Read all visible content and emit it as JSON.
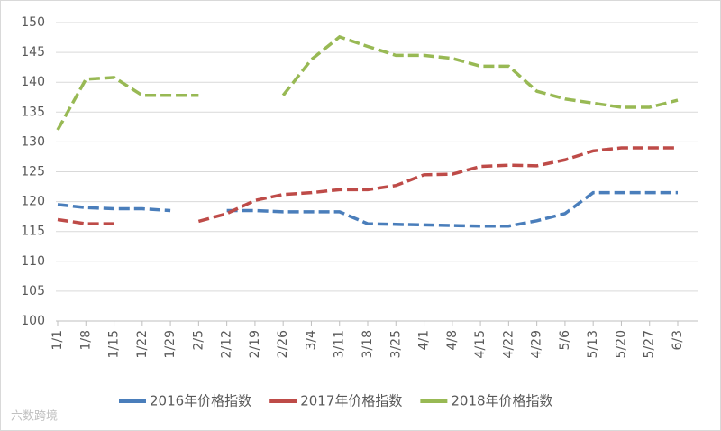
{
  "chart_data": {
    "type": "line",
    "categories": [
      "1/1",
      "1/8",
      "1/15",
      "1/22",
      "1/29",
      "2/5",
      "2/12",
      "2/19",
      "2/26",
      "3/4",
      "3/11",
      "3/18",
      "3/25",
      "4/1",
      "4/8",
      "4/15",
      "4/22",
      "4/29",
      "5/6",
      "5/13",
      "5/20",
      "5/27",
      "6/3"
    ],
    "series": [
      {
        "name": "2016年价格指数",
        "color": "#4a7ebb",
        "values": [
          119.5,
          119,
          118.8,
          118.8,
          118.5,
          null,
          118.5,
          118.5,
          118.3,
          118.3,
          118.3,
          116.3,
          116.2,
          116.1,
          116,
          115.9,
          115.9,
          116.8,
          118,
          121.5,
          121.5,
          121.5,
          121.5
        ]
      },
      {
        "name": "2017年价格指数",
        "color": "#be4b48",
        "values": [
          117,
          116.3,
          116.3,
          null,
          null,
          116.7,
          118,
          120.2,
          121.2,
          121.5,
          122,
          122,
          122.7,
          124.5,
          124.6,
          125.9,
          126.1,
          126,
          127,
          128.5,
          129,
          129,
          129
        ]
      },
      {
        "name": "2018年价格指数",
        "color": "#98b954",
        "values": [
          132,
          140.5,
          140.8,
          137.8,
          137.8,
          137.8,
          null,
          null,
          137.8,
          143.8,
          147.6,
          146,
          144.5,
          144.5,
          144,
          142.7,
          142.7,
          138.5,
          137.2,
          136.5,
          135.8,
          135.8,
          137
        ]
      }
    ],
    "ylim": [
      100,
      150
    ],
    "yticks": [
      100,
      105,
      110,
      115,
      120,
      125,
      130,
      135,
      140,
      145,
      150
    ],
    "grid": true,
    "legend": "bottom",
    "line_style": "dashed"
  },
  "watermark": "六数跨境"
}
